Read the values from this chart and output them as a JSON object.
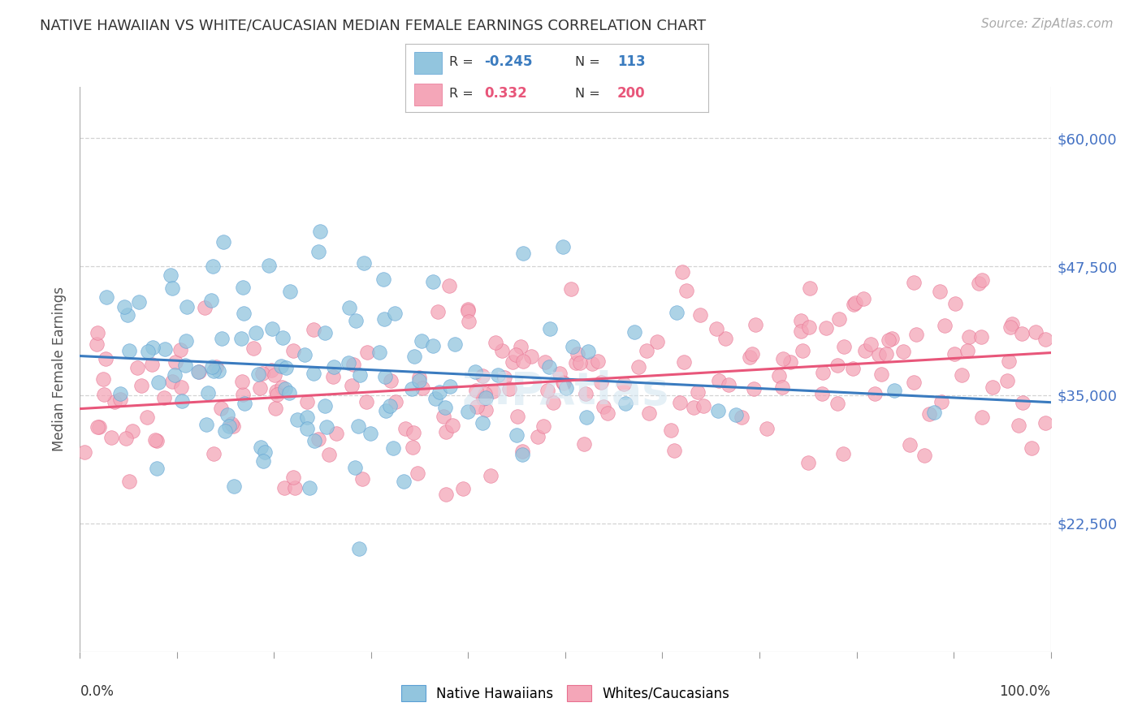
{
  "title": "NATIVE HAWAIIAN VS WHITE/CAUCASIAN MEDIAN FEMALE EARNINGS CORRELATION CHART",
  "source": "Source: ZipAtlas.com",
  "ylabel": "Median Female Earnings",
  "ytick_labels": [
    "$22,500",
    "$35,000",
    "$47,500",
    "$60,000"
  ],
  "ytick_values": [
    22500,
    35000,
    47500,
    60000
  ],
  "ymin": 10000,
  "ymax": 65000,
  "xmin": 0.0,
  "xmax": 1.0,
  "blue_R": -0.245,
  "pink_R": 0.332,
  "blue_N": 113,
  "pink_N": 200,
  "blue_color": "#92c5de",
  "pink_color": "#f4a6b8",
  "blue_line_color": "#3a7bbf",
  "pink_line_color": "#e8567a",
  "blue_edge_color": "#5a9fd4",
  "pink_edge_color": "#e87090",
  "watermark": "ZIPAtlas",
  "background_color": "#ffffff",
  "grid_color": "#c8c8c8",
  "title_color": "#333333",
  "right_tick_color": "#4472c4",
  "legend_text_color": "#444444",
  "seed": 42
}
